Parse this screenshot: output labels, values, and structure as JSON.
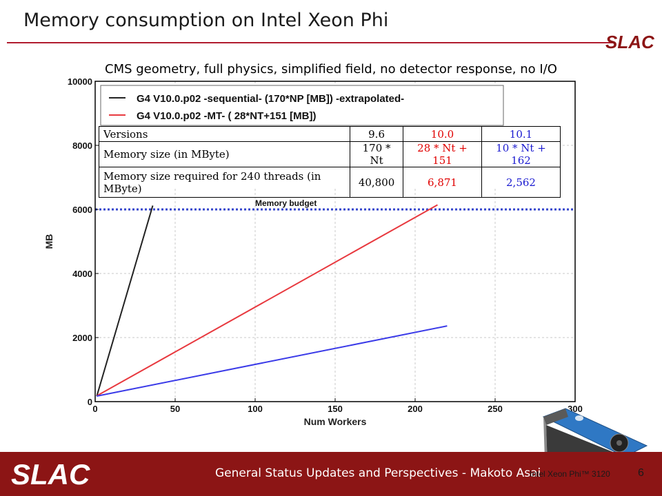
{
  "slide": {
    "title": "Memory consumption on Intel Xeon Phi",
    "subtitle": "CMS geometry, full physics, simplified field, no detector response, no I/O",
    "footer": "General Status Updates and Perspectives - Makoto Asai",
    "caption": "Intel Xeon Phi™ 3120",
    "page_number": "6",
    "logo_text": "SLAC"
  },
  "colors": {
    "brand": "#8c1515",
    "rule": "#b01c2e",
    "seq": "#222222",
    "mt": "#e8393f",
    "v101": "#3a3ae8",
    "budget": "#3344cc"
  },
  "table": {
    "rows": [
      [
        "Versions",
        "9.6",
        "10.0",
        "10.1"
      ],
      [
        "Memory size (in MByte)",
        "170 * Nt",
        "28 * Nt + 151",
        "10 * Nt + 162"
      ],
      [
        "Memory size required for 240 threads (in MByte)",
        "40,800",
        "6,871",
        "2,562"
      ]
    ]
  },
  "chart_data": {
    "type": "line",
    "xlabel": "Num Workers",
    "ylabel": "MB",
    "xlim": [
      0,
      300
    ],
    "ylim": [
      0,
      10000
    ],
    "xticks": [
      0,
      50,
      100,
      150,
      200,
      250,
      300
    ],
    "yticks": [
      0,
      2000,
      4000,
      6000,
      8000,
      10000
    ],
    "grid": true,
    "legend_position": "top-left",
    "series": [
      {
        "name": "G4 V10.0.p02 -sequential- (170*NP [MB]) -extrapolated-",
        "x": [
          1,
          36
        ],
        "y": [
          170,
          6120
        ]
      },
      {
        "name": "G4 V10.0.p02 -MT- ( 28*NT+151 [MB])",
        "x": [
          1,
          214
        ],
        "y": [
          179,
          6143
        ]
      },
      {
        "name": "",
        "x": [
          1,
          220
        ],
        "y": [
          172,
          2362
        ]
      }
    ],
    "annotations": [
      {
        "text": "Memory budget",
        "y": 6000
      }
    ]
  }
}
